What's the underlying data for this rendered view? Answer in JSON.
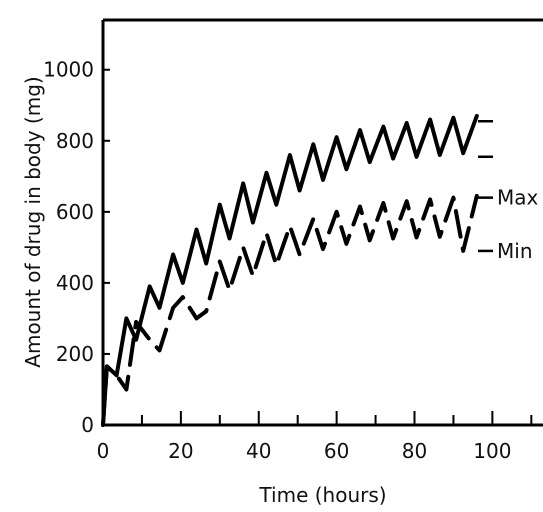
{
  "chart_data": {
    "type": "line",
    "xlabel": "Time (hours)",
    "ylabel": "Amount of drug in body (mg)",
    "xlim": [
      0,
      113
    ],
    "ylim": [
      0,
      1140
    ],
    "xticks": [
      0,
      20,
      40,
      60,
      80,
      100
    ],
    "yticks": [
      0,
      200,
      400,
      600,
      800,
      1000
    ],
    "grid": false,
    "series": [
      {
        "style": "solid",
        "x": [
          0,
          1,
          3.5,
          6,
          8.5,
          12,
          14.5,
          18,
          20.5,
          24,
          26.5,
          30,
          32.5,
          36,
          38.5,
          42,
          44.5,
          48,
          50.5,
          54,
          56.5,
          60,
          62.5,
          66,
          68.5,
          72,
          74.5,
          78,
          80.5,
          84,
          86.5,
          90,
          92.5,
          96
        ],
        "y": [
          0,
          165,
          140,
          300,
          240,
          390,
          330,
          480,
          400,
          550,
          455,
          620,
          525,
          680,
          570,
          710,
          620,
          760,
          660,
          790,
          690,
          810,
          720,
          830,
          740,
          840,
          750,
          850,
          755,
          860,
          760,
          865,
          765,
          870
        ]
      },
      {
        "style": "dashed",
        "x": [
          0,
          1,
          3.5,
          6,
          8.5,
          12,
          14.5,
          18,
          20.5,
          24,
          26.5,
          30,
          32.5,
          36,
          38.5,
          42,
          44.5,
          48,
          50.5,
          54,
          56.5,
          60,
          62.5,
          66,
          68.5,
          72,
          74.5,
          78,
          80.5,
          84,
          86.5,
          90,
          92.5,
          96
        ],
        "y": [
          0,
          165,
          140,
          100,
          290,
          240,
          210,
          330,
          360,
          300,
          320,
          460,
          380,
          500,
          420,
          540,
          450,
          560,
          480,
          580,
          495,
          600,
          510,
          615,
          520,
          625,
          525,
          630,
          528,
          635,
          530,
          640,
          490,
          645
        ]
      }
    ],
    "markers": [
      {
        "y": 855,
        "label": ""
      },
      {
        "y": 755,
        "label": ""
      },
      {
        "y": 640,
        "label": "Max"
      },
      {
        "y": 490,
        "label": "Min"
      }
    ],
    "colors": {
      "line": "#000000",
      "background": "#ffffff"
    }
  }
}
